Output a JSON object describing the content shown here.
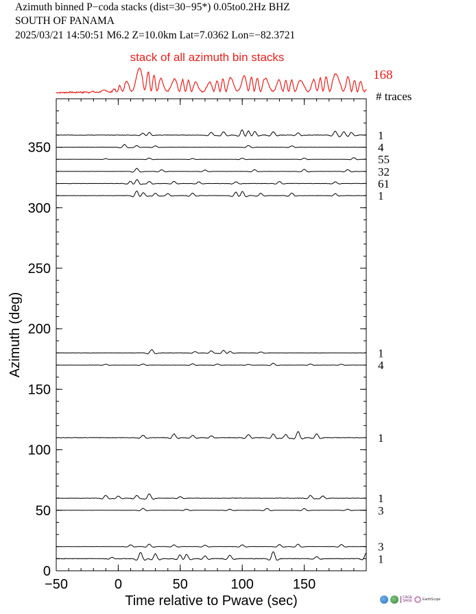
{
  "header": {
    "line1": "Azimuth binned P−coda stacks (dist=30−95*)  0.05to0.2Hz  BHZ",
    "line2": "SOUTH OF PANAMA",
    "line3": "2025/03/21  14:50:51  M6.2  Z=10.0km Lat=7.0362 Lon=−82.3721"
  },
  "colors": {
    "stack": "#e8201c",
    "traces": "#000000",
    "logo_a": "#2e6fbf",
    "logo_b": "#3a8a3e"
  },
  "logos": {
    "cage_label": "CAGE",
    "sage_label": "SAGE",
    "earthscope_label": "EarthScope"
  },
  "chart_data": {
    "type": "line",
    "xlabel": "Time relative to Pwave (sec)",
    "ylabel": "Azimuth (deg)",
    "xlim": [
      -50,
      200
    ],
    "ylim": [
      0,
      390
    ],
    "xticks": [
      -50,
      0,
      50,
      100,
      150
    ],
    "yticks": [
      0,
      50,
      100,
      150,
      200,
      250,
      300,
      350
    ],
    "traces_header": "# traces",
    "stack": {
      "label": "stack of all azimuth bin stacks",
      "count": "168",
      "peaks": [
        [
          -50,
          0
        ],
        [
          -25,
          0.03
        ],
        [
          -5,
          0.1
        ],
        [
          0,
          0.22
        ],
        [
          10,
          0.55
        ],
        [
          15,
          0.95
        ],
        [
          20,
          0.85
        ],
        [
          25,
          0.75
        ],
        [
          30,
          0.6
        ],
        [
          35,
          0.5
        ],
        [
          40,
          0.45
        ],
        [
          45,
          0.5
        ],
        [
          55,
          0.45
        ],
        [
          70,
          0.35
        ],
        [
          85,
          0.5
        ],
        [
          100,
          0.65
        ],
        [
          110,
          0.55
        ],
        [
          125,
          0.5
        ],
        [
          140,
          0.45
        ],
        [
          155,
          0.45
        ],
        [
          170,
          0.6
        ],
        [
          180,
          0.75
        ],
        [
          190,
          0.45
        ],
        [
          200,
          0.35
        ]
      ]
    },
    "bins": [
      {
        "azimuth": 360,
        "count": "1",
        "amp": 8,
        "peaks": [
          [
            20,
            0.4
          ],
          [
            25,
            0.5
          ],
          [
            75,
            0.5
          ],
          [
            85,
            0.6
          ],
          [
            100,
            1.0
          ],
          [
            105,
            0.9
          ],
          [
            110,
            0.7
          ],
          [
            125,
            0.6
          ],
          [
            145,
            0.4
          ],
          [
            175,
            0.7
          ],
          [
            182,
            0.6
          ],
          [
            188,
            0.5
          ]
        ]
      },
      {
        "azimuth": 350,
        "count": "4",
        "amp": 5,
        "peaks": [
          [
            5,
            0.8
          ],
          [
            15,
            0.5
          ],
          [
            30,
            0.4
          ],
          [
            105,
            0.5
          ],
          [
            140,
            0.4
          ]
        ]
      },
      {
        "azimuth": 340,
        "count": "55",
        "amp": 3,
        "peaks": [
          [
            -10,
            0.3
          ],
          [
            25,
            0.6
          ],
          [
            60,
            0.4
          ],
          [
            100,
            0.5
          ],
          [
            150,
            0.6
          ],
          [
            190,
            0.8
          ]
        ]
      },
      {
        "azimuth": 330,
        "count": "32",
        "amp": 5,
        "peaks": [
          [
            15,
            0.9
          ],
          [
            35,
            0.5
          ],
          [
            70,
            0.4
          ],
          [
            110,
            0.5
          ],
          [
            150,
            0.6
          ],
          [
            185,
            0.5
          ]
        ]
      },
      {
        "azimuth": 320,
        "count": "61",
        "amp": 6,
        "peaks": [
          [
            10,
            0.6
          ],
          [
            15,
            1.0
          ],
          [
            25,
            0.5
          ],
          [
            45,
            0.5
          ],
          [
            65,
            0.4
          ],
          [
            95,
            0.4
          ],
          [
            130,
            0.5
          ],
          [
            175,
            0.4
          ]
        ]
      },
      {
        "azimuth": 310,
        "count": "1",
        "amp": 7,
        "peaks": [
          [
            15,
            1.0
          ],
          [
            20,
            0.7
          ],
          [
            30,
            0.5
          ],
          [
            40,
            0.4
          ],
          [
            60,
            0.5
          ],
          [
            95,
            0.8
          ],
          [
            100,
            0.9
          ],
          [
            115,
            0.5
          ],
          [
            140,
            0.5
          ],
          [
            175,
            0.4
          ]
        ]
      },
      {
        "azimuth": 180,
        "count": "1",
        "amp": 5,
        "peaks": [
          [
            27,
            1.0
          ],
          [
            62,
            0.4
          ],
          [
            75,
            0.6
          ],
          [
            85,
            0.8
          ],
          [
            90,
            0.5
          ],
          [
            115,
            0.3
          ]
        ]
      },
      {
        "azimuth": 170,
        "count": "4",
        "amp": 3,
        "peaks": [
          [
            -10,
            0.4
          ],
          [
            20,
            0.5
          ],
          [
            60,
            0.6
          ],
          [
            80,
            0.5
          ],
          [
            105,
            0.3
          ],
          [
            125,
            0.9
          ],
          [
            155,
            0.5
          ],
          [
            180,
            0.4
          ]
        ]
      },
      {
        "azimuth": 110,
        "count": "1",
        "amp": 9,
        "peaks": [
          [
            20,
            0.4
          ],
          [
            45,
            0.6
          ],
          [
            60,
            0.4
          ],
          [
            75,
            0.3
          ],
          [
            105,
            0.5
          ],
          [
            125,
            0.6
          ],
          [
            135,
            0.5
          ],
          [
            145,
            1.0
          ],
          [
            160,
            0.6
          ]
        ]
      },
      {
        "azimuth": 60,
        "count": "1",
        "amp": 8,
        "peaks": [
          [
            -10,
            0.5
          ],
          [
            0,
            0.4
          ],
          [
            15,
            0.5
          ],
          [
            25,
            0.8
          ],
          [
            50,
            0.3
          ],
          [
            155,
            0.5
          ],
          [
            165,
            0.4
          ]
        ]
      },
      {
        "azimuth": 50,
        "count": "3",
        "amp": 4,
        "peaks": [
          [
            20,
            0.7
          ],
          [
            55,
            0.4
          ],
          [
            90,
            0.4
          ],
          [
            120,
            0.7
          ],
          [
            150,
            0.6
          ],
          [
            185,
            0.4
          ]
        ]
      },
      {
        "azimuth": 20,
        "count": "3",
        "amp": 5,
        "peaks": [
          [
            10,
            0.5
          ],
          [
            25,
            0.7
          ],
          [
            45,
            0.5
          ],
          [
            70,
            0.4
          ],
          [
            100,
            0.5
          ],
          [
            130,
            0.6
          ],
          [
            145,
            0.7
          ],
          [
            180,
            0.6
          ]
        ]
      },
      {
        "azimuth": 10,
        "count": "1",
        "amp": 10,
        "peaks": [
          [
            -5,
            0.2
          ],
          [
            18,
            0.9
          ],
          [
            30,
            0.7
          ],
          [
            50,
            0.6
          ],
          [
            55,
            0.7
          ],
          [
            70,
            0.4
          ],
          [
            90,
            0.5
          ],
          [
            125,
            1.0
          ],
          [
            160,
            0.3
          ],
          [
            200,
            0.8
          ]
        ]
      }
    ]
  }
}
